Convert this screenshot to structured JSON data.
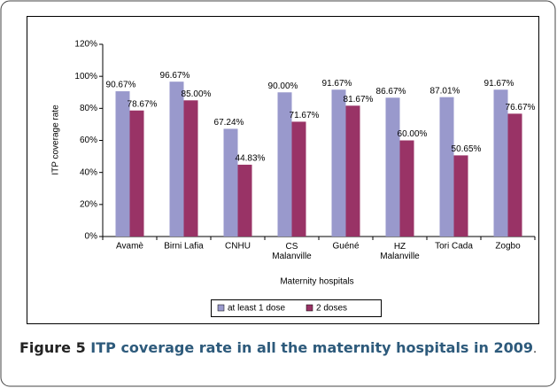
{
  "chart_data": {
    "type": "bar",
    "categories": [
      "Avamè",
      "Birni Lafia",
      "CNHU",
      "CS Malanville",
      "Guéné",
      "HZ Malanville",
      "Tori Cada",
      "Zogbo"
    ],
    "series": [
      {
        "name": "at least 1 dose",
        "color": "#9999cc",
        "values": [
          90.67,
          96.67,
          67.24,
          90.0,
          91.67,
          86.67,
          87.01,
          91.67
        ],
        "value_labels": [
          "90.67%",
          "96.67%",
          "67.24%",
          "90.00%",
          "91.67%",
          "86.67%",
          "87.01%",
          "91.67%"
        ]
      },
      {
        "name": "2 doses",
        "color": "#993366",
        "values": [
          78.67,
          85.0,
          44.83,
          71.67,
          81.67,
          60.0,
          50.65,
          76.67
        ],
        "value_labels": [
          "78.67%",
          "85.00%",
          "44.83%",
          "71.67%",
          "81.67%",
          "60.00%",
          "50.65%",
          "76.67%"
        ]
      }
    ],
    "ylabel": "ITP coverage rate",
    "xlabel": "Maternity hospitals",
    "ylim": [
      0,
      120
    ],
    "yticks": [
      {
        "value": 0,
        "label": "0%"
      },
      {
        "value": 20,
        "label": "20%"
      },
      {
        "value": 40,
        "label": "40%"
      },
      {
        "value": 60,
        "label": "60%"
      },
      {
        "value": 80,
        "label": "80%"
      },
      {
        "value": 100,
        "label": "100%"
      },
      {
        "value": 120,
        "label": "120%"
      }
    ],
    "legend": "bottom"
  },
  "caption": {
    "label": "Figure 5",
    "text": "ITP coverage rate in all the maternity hospitals in 2009",
    "end": "."
  }
}
